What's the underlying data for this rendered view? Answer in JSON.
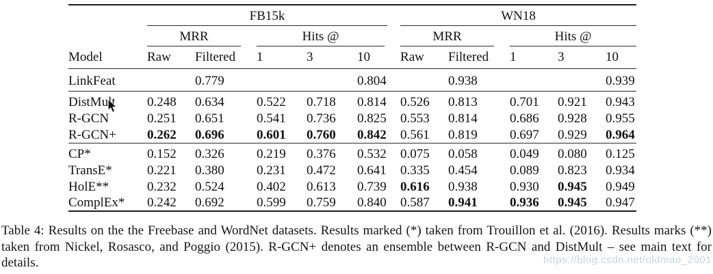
{
  "table": {
    "groups": [
      {
        "label": "FB15k"
      },
      {
        "label": "WN18"
      }
    ],
    "subgroups": [
      {
        "label": "MRR"
      },
      {
        "label": "Hits @"
      },
      {
        "label": "MRR"
      },
      {
        "label": "Hits @"
      }
    ],
    "columns": [
      "Model",
      "Raw",
      "Filtered",
      "1",
      "3",
      "10",
      "Raw",
      "Filtered",
      "1",
      "3",
      "10"
    ],
    "sections": [
      {
        "rows": [
          {
            "model": "LinkFeat",
            "values": [
              "",
              "0.779",
              "",
              "",
              "0.804",
              "",
              "0.938",
              "",
              "",
              "0.939"
            ],
            "bold": [
              0,
              0,
              0,
              0,
              0,
              0,
              0,
              0,
              0,
              0
            ]
          }
        ]
      },
      {
        "rows": [
          {
            "model": "DistMult",
            "values": [
              "0.248",
              "0.634",
              "0.522",
              "0.718",
              "0.814",
              "0.526",
              "0.813",
              "0.701",
              "0.921",
              "0.943"
            ],
            "bold": [
              0,
              0,
              0,
              0,
              0,
              0,
              0,
              0,
              0,
              0
            ]
          },
          {
            "model": "R-GCN",
            "values": [
              "0.251",
              "0.651",
              "0.541",
              "0.736",
              "0.825",
              "0.553",
              "0.814",
              "0.686",
              "0.928",
              "0.955"
            ],
            "bold": [
              0,
              0,
              0,
              0,
              0,
              0,
              0,
              0,
              0,
              0
            ]
          },
          {
            "model": "R-GCN+",
            "values": [
              "0.262",
              "0.696",
              "0.601",
              "0.760",
              "0.842",
              "0.561",
              "0.819",
              "0.697",
              "0.929",
              "0.964"
            ],
            "bold": [
              1,
              1,
              1,
              1,
              1,
              0,
              0,
              0,
              0,
              1
            ]
          }
        ]
      },
      {
        "rows": [
          {
            "model": "CP*",
            "values": [
              "0.152",
              "0.326",
              "0.219",
              "0.376",
              "0.532",
              "0.075",
              "0.058",
              "0.049",
              "0.080",
              "0.125"
            ],
            "bold": [
              0,
              0,
              0,
              0,
              0,
              0,
              0,
              0,
              0,
              0
            ]
          },
          {
            "model": "TransE*",
            "values": [
              "0.221",
              "0.380",
              "0.231",
              "0.472",
              "0.641",
              "0.335",
              "0.454",
              "0.089",
              "0.823",
              "0.934"
            ],
            "bold": [
              0,
              0,
              0,
              0,
              0,
              0,
              0,
              0,
              0,
              0
            ]
          },
          {
            "model": "HolE**",
            "values": [
              "0.232",
              "0.524",
              "0.402",
              "0.613",
              "0.739",
              "0.616",
              "0.938",
              "0.930",
              "0.945",
              "0.949"
            ],
            "bold": [
              0,
              0,
              0,
              0,
              0,
              1,
              0,
              0,
              1,
              0
            ]
          },
          {
            "model": "ComplEx*",
            "values": [
              "0.242",
              "0.692",
              "0.599",
              "0.759",
              "0.840",
              "0.587",
              "0.941",
              "0.936",
              "0.945",
              "0.947"
            ],
            "bold": [
              0,
              0,
              0,
              0,
              0,
              0,
              1,
              1,
              1,
              0
            ]
          }
        ]
      }
    ]
  },
  "caption": {
    "text": "Table 4: Results on the the Freebase and WordNet datasets. Results marked (*) taken from Trouillon et al. (2016). Results marks (**) taken from Nickel, Rosasco, and Poggio (2015). R-GCN+ denotes an ensemble between R-GCN and DistMult – see main text for details."
  },
  "watermark": {
    "text": "https://blog.csdn.net/oldmao_2001",
    "color": "#c9d3da"
  },
  "colors": {
    "rule": "#1c1c1c",
    "text": "#111111"
  }
}
